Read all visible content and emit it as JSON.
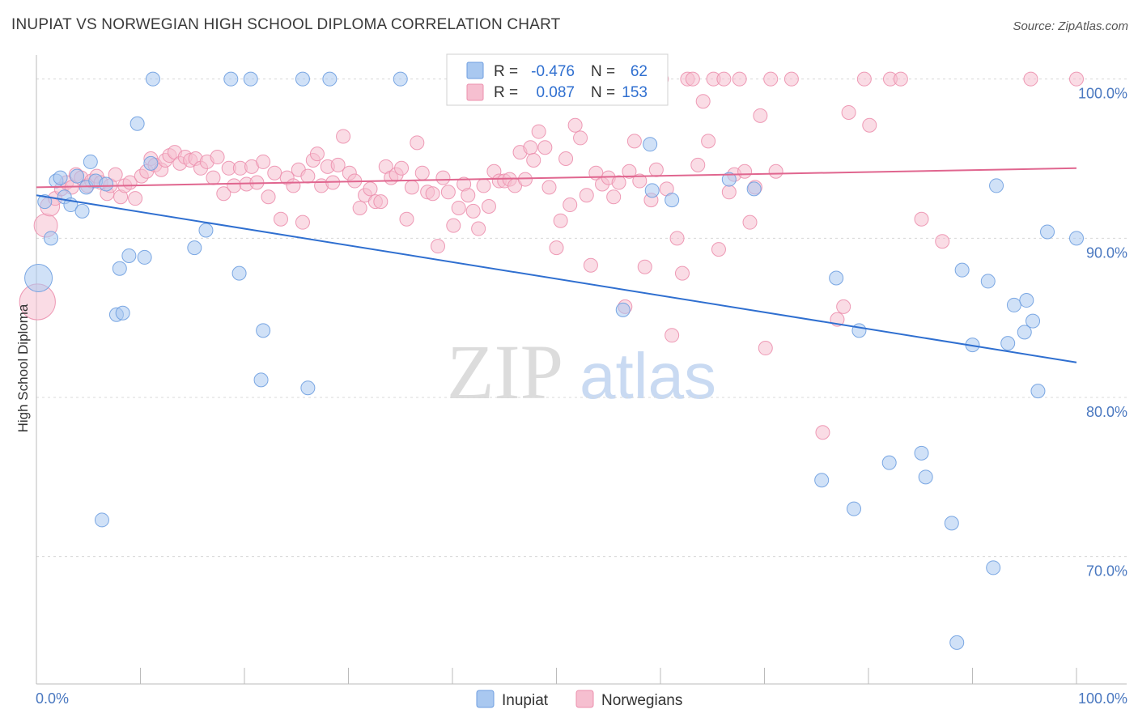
{
  "header": {
    "title": "INUPIAT VS NORWEGIAN HIGH SCHOOL DIPLOMA CORRELATION CHART",
    "source": "Source: ZipAtlas.com"
  },
  "legend_box": {
    "rows": [
      {
        "r_label": "R =",
        "r_value": "-0.476",
        "n_label": "N =",
        "n_value": "62"
      },
      {
        "r_label": "R =",
        "r_value": "0.087",
        "n_label": "N =",
        "n_value": "153"
      }
    ]
  },
  "bottom_legend": [
    "Inupiat",
    "Norwegians"
  ],
  "watermark": {
    "zip": "ZIP",
    "atlas": "atlas"
  },
  "colors": {
    "inupiat_fill": "#a9c8f0",
    "inupiat_stroke": "#6e9ee0",
    "inupiat_line": "#2f6fd0",
    "norw_fill": "#f6bfd0",
    "norw_stroke": "#ec90ae",
    "norw_line": "#e0668f",
    "grid": "#d8d8d8",
    "axis_text": "#4a78c0",
    "legend_value": "#2f6fd0"
  },
  "chart_data": {
    "type": "scatter",
    "title": "INUPIAT VS NORWEGIAN HIGH SCHOOL DIPLOMA CORRELATION CHART",
    "xlabel": "",
    "ylabel": "High School Diploma",
    "xlim": [
      0,
      100
    ],
    "ylim": [
      62,
      101
    ],
    "x_tick_labels": [
      "0.0%",
      "100.0%"
    ],
    "y_ticks": [
      70,
      80,
      90,
      100
    ],
    "y_tick_labels": [
      "70.0%",
      "80.0%",
      "90.0%",
      "100.0%"
    ],
    "grid": true,
    "legend_position": "bottom-center",
    "series": [
      {
        "name": "Inupiat",
        "r": -0.476,
        "n": 62,
        "trend": {
          "x": [
            0,
            100
          ],
          "y": [
            92.7,
            82.2
          ]
        },
        "points": [
          {
            "x": 0.2,
            "y": 87.5,
            "s": 2
          },
          {
            "x": 0.8,
            "y": 92.3
          },
          {
            "x": 1.4,
            "y": 90.0
          },
          {
            "x": 1.9,
            "y": 93.6
          },
          {
            "x": 2.3,
            "y": 93.8
          },
          {
            "x": 2.7,
            "y": 92.6
          },
          {
            "x": 3.3,
            "y": 92.1
          },
          {
            "x": 3.9,
            "y": 93.9
          },
          {
            "x": 4.4,
            "y": 91.7
          },
          {
            "x": 4.8,
            "y": 93.2
          },
          {
            "x": 5.2,
            "y": 94.8
          },
          {
            "x": 5.7,
            "y": 93.6
          },
          {
            "x": 6.3,
            "y": 72.3
          },
          {
            "x": 6.7,
            "y": 93.4
          },
          {
            "x": 7.7,
            "y": 85.2
          },
          {
            "x": 8.0,
            "y": 88.1
          },
          {
            "x": 8.3,
            "y": 85.3
          },
          {
            "x": 8.9,
            "y": 88.9
          },
          {
            "x": 9.7,
            "y": 97.2
          },
          {
            "x": 10.4,
            "y": 88.8
          },
          {
            "x": 11.0,
            "y": 94.7
          },
          {
            "x": 11.2,
            "y": 100.0
          },
          {
            "x": 15.2,
            "y": 89.4
          },
          {
            "x": 16.3,
            "y": 90.5
          },
          {
            "x": 18.7,
            "y": 100.0
          },
          {
            "x": 19.5,
            "y": 87.8
          },
          {
            "x": 20.6,
            "y": 100.0
          },
          {
            "x": 21.6,
            "y": 81.1
          },
          {
            "x": 21.8,
            "y": 84.2
          },
          {
            "x": 25.6,
            "y": 100.0
          },
          {
            "x": 26.1,
            "y": 80.6
          },
          {
            "x": 28.2,
            "y": 100.0
          },
          {
            "x": 35.0,
            "y": 100.0
          },
          {
            "x": 52.4,
            "y": 100.0
          },
          {
            "x": 52.5,
            "y": 100.0
          },
          {
            "x": 56.4,
            "y": 85.5
          },
          {
            "x": 59.0,
            "y": 95.9
          },
          {
            "x": 59.2,
            "y": 93.0
          },
          {
            "x": 61.1,
            "y": 92.4
          },
          {
            "x": 66.6,
            "y": 93.7
          },
          {
            "x": 69.0,
            "y": 93.1
          },
          {
            "x": 75.5,
            "y": 74.8
          },
          {
            "x": 76.9,
            "y": 87.5
          },
          {
            "x": 78.6,
            "y": 73.0
          },
          {
            "x": 79.1,
            "y": 84.2
          },
          {
            "x": 82.0,
            "y": 75.9
          },
          {
            "x": 85.1,
            "y": 76.5
          },
          {
            "x": 85.5,
            "y": 75.0
          },
          {
            "x": 88.0,
            "y": 72.1
          },
          {
            "x": 88.5,
            "y": 64.6
          },
          {
            "x": 89.0,
            "y": 88.0
          },
          {
            "x": 90.0,
            "y": 83.3
          },
          {
            "x": 91.5,
            "y": 87.3
          },
          {
            "x": 92.0,
            "y": 69.3
          },
          {
            "x": 92.3,
            "y": 93.3
          },
          {
            "x": 93.4,
            "y": 83.4
          },
          {
            "x": 94.0,
            "y": 85.8
          },
          {
            "x": 95.0,
            "y": 84.1
          },
          {
            "x": 95.2,
            "y": 86.1
          },
          {
            "x": 95.8,
            "y": 84.8
          },
          {
            "x": 96.3,
            "y": 80.4
          },
          {
            "x": 97.2,
            "y": 90.4
          },
          {
            "x": 100.0,
            "y": 90.0
          }
        ]
      },
      {
        "name": "Norwegians",
        "r": 0.087,
        "n": 153,
        "trend": {
          "x": [
            0,
            100
          ],
          "y": [
            93.2,
            94.4
          ]
        },
        "points": [
          {
            "x": 0.1,
            "y": 86.0,
            "s": 2.6
          },
          {
            "x": 0.9,
            "y": 90.8,
            "s": 1.7
          },
          {
            "x": 1.3,
            "y": 92.0,
            "s": 1.4
          },
          {
            "x": 1.8,
            "y": 92.5
          },
          {
            "x": 2.4,
            "y": 93.1
          },
          {
            "x": 2.9,
            "y": 93.5
          },
          {
            "x": 3.4,
            "y": 93.2
          },
          {
            "x": 3.8,
            "y": 94.0
          },
          {
            "x": 4.3,
            "y": 93.8
          },
          {
            "x": 4.9,
            "y": 93.3
          },
          {
            "x": 5.3,
            "y": 93.6
          },
          {
            "x": 5.8,
            "y": 93.9
          },
          {
            "x": 6.2,
            "y": 93.5
          },
          {
            "x": 6.8,
            "y": 92.8
          },
          {
            "x": 7.1,
            "y": 93.3
          },
          {
            "x": 7.6,
            "y": 94.0
          },
          {
            "x": 8.1,
            "y": 92.6
          },
          {
            "x": 8.5,
            "y": 93.3
          },
          {
            "x": 9.0,
            "y": 93.5
          },
          {
            "x": 9.5,
            "y": 92.5
          },
          {
            "x": 10.1,
            "y": 93.9
          },
          {
            "x": 10.6,
            "y": 94.2
          },
          {
            "x": 11.0,
            "y": 95.0
          },
          {
            "x": 11.4,
            "y": 94.6
          },
          {
            "x": 12.0,
            "y": 94.3
          },
          {
            "x": 12.4,
            "y": 94.9
          },
          {
            "x": 12.8,
            "y": 95.2
          },
          {
            "x": 13.3,
            "y": 95.4
          },
          {
            "x": 13.8,
            "y": 94.7
          },
          {
            "x": 14.3,
            "y": 95.1
          },
          {
            "x": 14.8,
            "y": 94.9
          },
          {
            "x": 15.3,
            "y": 95.0
          },
          {
            "x": 15.8,
            "y": 94.4
          },
          {
            "x": 16.4,
            "y": 94.8
          },
          {
            "x": 17.0,
            "y": 93.8
          },
          {
            "x": 17.4,
            "y": 95.1
          },
          {
            "x": 18.0,
            "y": 92.8
          },
          {
            "x": 18.5,
            "y": 94.4
          },
          {
            "x": 19.0,
            "y": 93.3
          },
          {
            "x": 19.6,
            "y": 94.4
          },
          {
            "x": 20.2,
            "y": 93.4
          },
          {
            "x": 20.7,
            "y": 94.5
          },
          {
            "x": 21.2,
            "y": 93.5
          },
          {
            "x": 21.8,
            "y": 94.8
          },
          {
            "x": 22.3,
            "y": 92.6
          },
          {
            "x": 22.9,
            "y": 94.1
          },
          {
            "x": 23.5,
            "y": 91.2
          },
          {
            "x": 24.1,
            "y": 93.8
          },
          {
            "x": 24.7,
            "y": 93.3
          },
          {
            "x": 25.2,
            "y": 94.3
          },
          {
            "x": 25.6,
            "y": 91.0
          },
          {
            "x": 26.1,
            "y": 93.9
          },
          {
            "x": 26.6,
            "y": 94.9
          },
          {
            "x": 27.0,
            "y": 95.3
          },
          {
            "x": 27.4,
            "y": 93.3
          },
          {
            "x": 28.0,
            "y": 94.5
          },
          {
            "x": 28.5,
            "y": 93.5
          },
          {
            "x": 29.0,
            "y": 94.6
          },
          {
            "x": 29.5,
            "y": 96.4
          },
          {
            "x": 30.1,
            "y": 94.1
          },
          {
            "x": 30.6,
            "y": 93.6
          },
          {
            "x": 31.1,
            "y": 91.9
          },
          {
            "x": 31.6,
            "y": 92.7
          },
          {
            "x": 32.1,
            "y": 93.1
          },
          {
            "x": 32.6,
            "y": 92.3
          },
          {
            "x": 33.1,
            "y": 92.3
          },
          {
            "x": 33.6,
            "y": 94.5
          },
          {
            "x": 34.1,
            "y": 93.8
          },
          {
            "x": 34.6,
            "y": 94.0
          },
          {
            "x": 35.1,
            "y": 94.4
          },
          {
            "x": 35.6,
            "y": 91.2
          },
          {
            "x": 36.1,
            "y": 93.2
          },
          {
            "x": 36.6,
            "y": 96.0
          },
          {
            "x": 37.1,
            "y": 94.1
          },
          {
            "x": 37.6,
            "y": 92.9
          },
          {
            "x": 38.1,
            "y": 92.8
          },
          {
            "x": 38.6,
            "y": 89.5
          },
          {
            "x": 39.1,
            "y": 93.8
          },
          {
            "x": 39.6,
            "y": 92.9
          },
          {
            "x": 40.1,
            "y": 90.8
          },
          {
            "x": 40.6,
            "y": 91.9
          },
          {
            "x": 41.1,
            "y": 93.4
          },
          {
            "x": 41.5,
            "y": 92.7
          },
          {
            "x": 42.0,
            "y": 91.7
          },
          {
            "x": 42.5,
            "y": 90.6
          },
          {
            "x": 43.0,
            "y": 93.3
          },
          {
            "x": 43.5,
            "y": 92.0
          },
          {
            "x": 44.0,
            "y": 94.2
          },
          {
            "x": 44.5,
            "y": 93.6
          },
          {
            "x": 45.0,
            "y": 93.6
          },
          {
            "x": 45.5,
            "y": 93.7
          },
          {
            "x": 46.0,
            "y": 93.3
          },
          {
            "x": 46.5,
            "y": 95.4
          },
          {
            "x": 47.0,
            "y": 93.7
          },
          {
            "x": 47.5,
            "y": 95.7
          },
          {
            "x": 47.8,
            "y": 94.9
          },
          {
            "x": 48.3,
            "y": 96.7
          },
          {
            "x": 48.9,
            "y": 95.7
          },
          {
            "x": 49.3,
            "y": 93.2
          },
          {
            "x": 50.0,
            "y": 89.4
          },
          {
            "x": 50.4,
            "y": 91.1
          },
          {
            "x": 50.9,
            "y": 95.0
          },
          {
            "x": 51.3,
            "y": 92.1
          },
          {
            "x": 51.8,
            "y": 97.1
          },
          {
            "x": 52.3,
            "y": 96.3
          },
          {
            "x": 52.9,
            "y": 92.7
          },
          {
            "x": 53.3,
            "y": 88.3
          },
          {
            "x": 53.8,
            "y": 94.1
          },
          {
            "x": 54.4,
            "y": 93.4
          },
          {
            "x": 55.0,
            "y": 93.8
          },
          {
            "x": 55.5,
            "y": 92.6
          },
          {
            "x": 56.0,
            "y": 93.5
          },
          {
            "x": 56.6,
            "y": 85.7
          },
          {
            "x": 57.0,
            "y": 94.2
          },
          {
            "x": 57.5,
            "y": 96.1
          },
          {
            "x": 58.0,
            "y": 93.6
          },
          {
            "x": 58.5,
            "y": 88.2
          },
          {
            "x": 59.1,
            "y": 92.4
          },
          {
            "x": 59.6,
            "y": 94.3
          },
          {
            "x": 60.1,
            "y": 100.0
          },
          {
            "x": 60.6,
            "y": 93.1
          },
          {
            "x": 61.1,
            "y": 83.9
          },
          {
            "x": 61.6,
            "y": 90.0
          },
          {
            "x": 62.1,
            "y": 87.8
          },
          {
            "x": 62.6,
            "y": 100.0
          },
          {
            "x": 63.1,
            "y": 100.0
          },
          {
            "x": 63.6,
            "y": 94.6
          },
          {
            "x": 64.1,
            "y": 98.6
          },
          {
            "x": 64.6,
            "y": 96.1
          },
          {
            "x": 65.1,
            "y": 100.0
          },
          {
            "x": 65.6,
            "y": 89.3
          },
          {
            "x": 66.1,
            "y": 100.0
          },
          {
            "x": 66.6,
            "y": 92.9
          },
          {
            "x": 67.1,
            "y": 94.0
          },
          {
            "x": 67.6,
            "y": 100.0
          },
          {
            "x": 68.1,
            "y": 94.2
          },
          {
            "x": 68.6,
            "y": 91.0
          },
          {
            "x": 69.1,
            "y": 93.2
          },
          {
            "x": 69.6,
            "y": 97.7
          },
          {
            "x": 70.1,
            "y": 83.1
          },
          {
            "x": 70.6,
            "y": 100.0
          },
          {
            "x": 71.1,
            "y": 94.2
          },
          {
            "x": 72.6,
            "y": 100.0
          },
          {
            "x": 75.6,
            "y": 77.8
          },
          {
            "x": 77.0,
            "y": 84.9
          },
          {
            "x": 77.6,
            "y": 85.7
          },
          {
            "x": 78.1,
            "y": 97.9
          },
          {
            "x": 80.1,
            "y": 97.1
          },
          {
            "x": 82.1,
            "y": 100.0
          },
          {
            "x": 83.1,
            "y": 100.0
          },
          {
            "x": 85.1,
            "y": 91.2
          },
          {
            "x": 87.1,
            "y": 89.8
          },
          {
            "x": 95.6,
            "y": 100.0
          },
          {
            "x": 100.0,
            "y": 100.0
          },
          {
            "x": 79.6,
            "y": 100.0
          },
          {
            "x": 58.8,
            "y": 100.0
          },
          {
            "x": 55.1,
            "y": 100.0
          }
        ]
      }
    ]
  }
}
